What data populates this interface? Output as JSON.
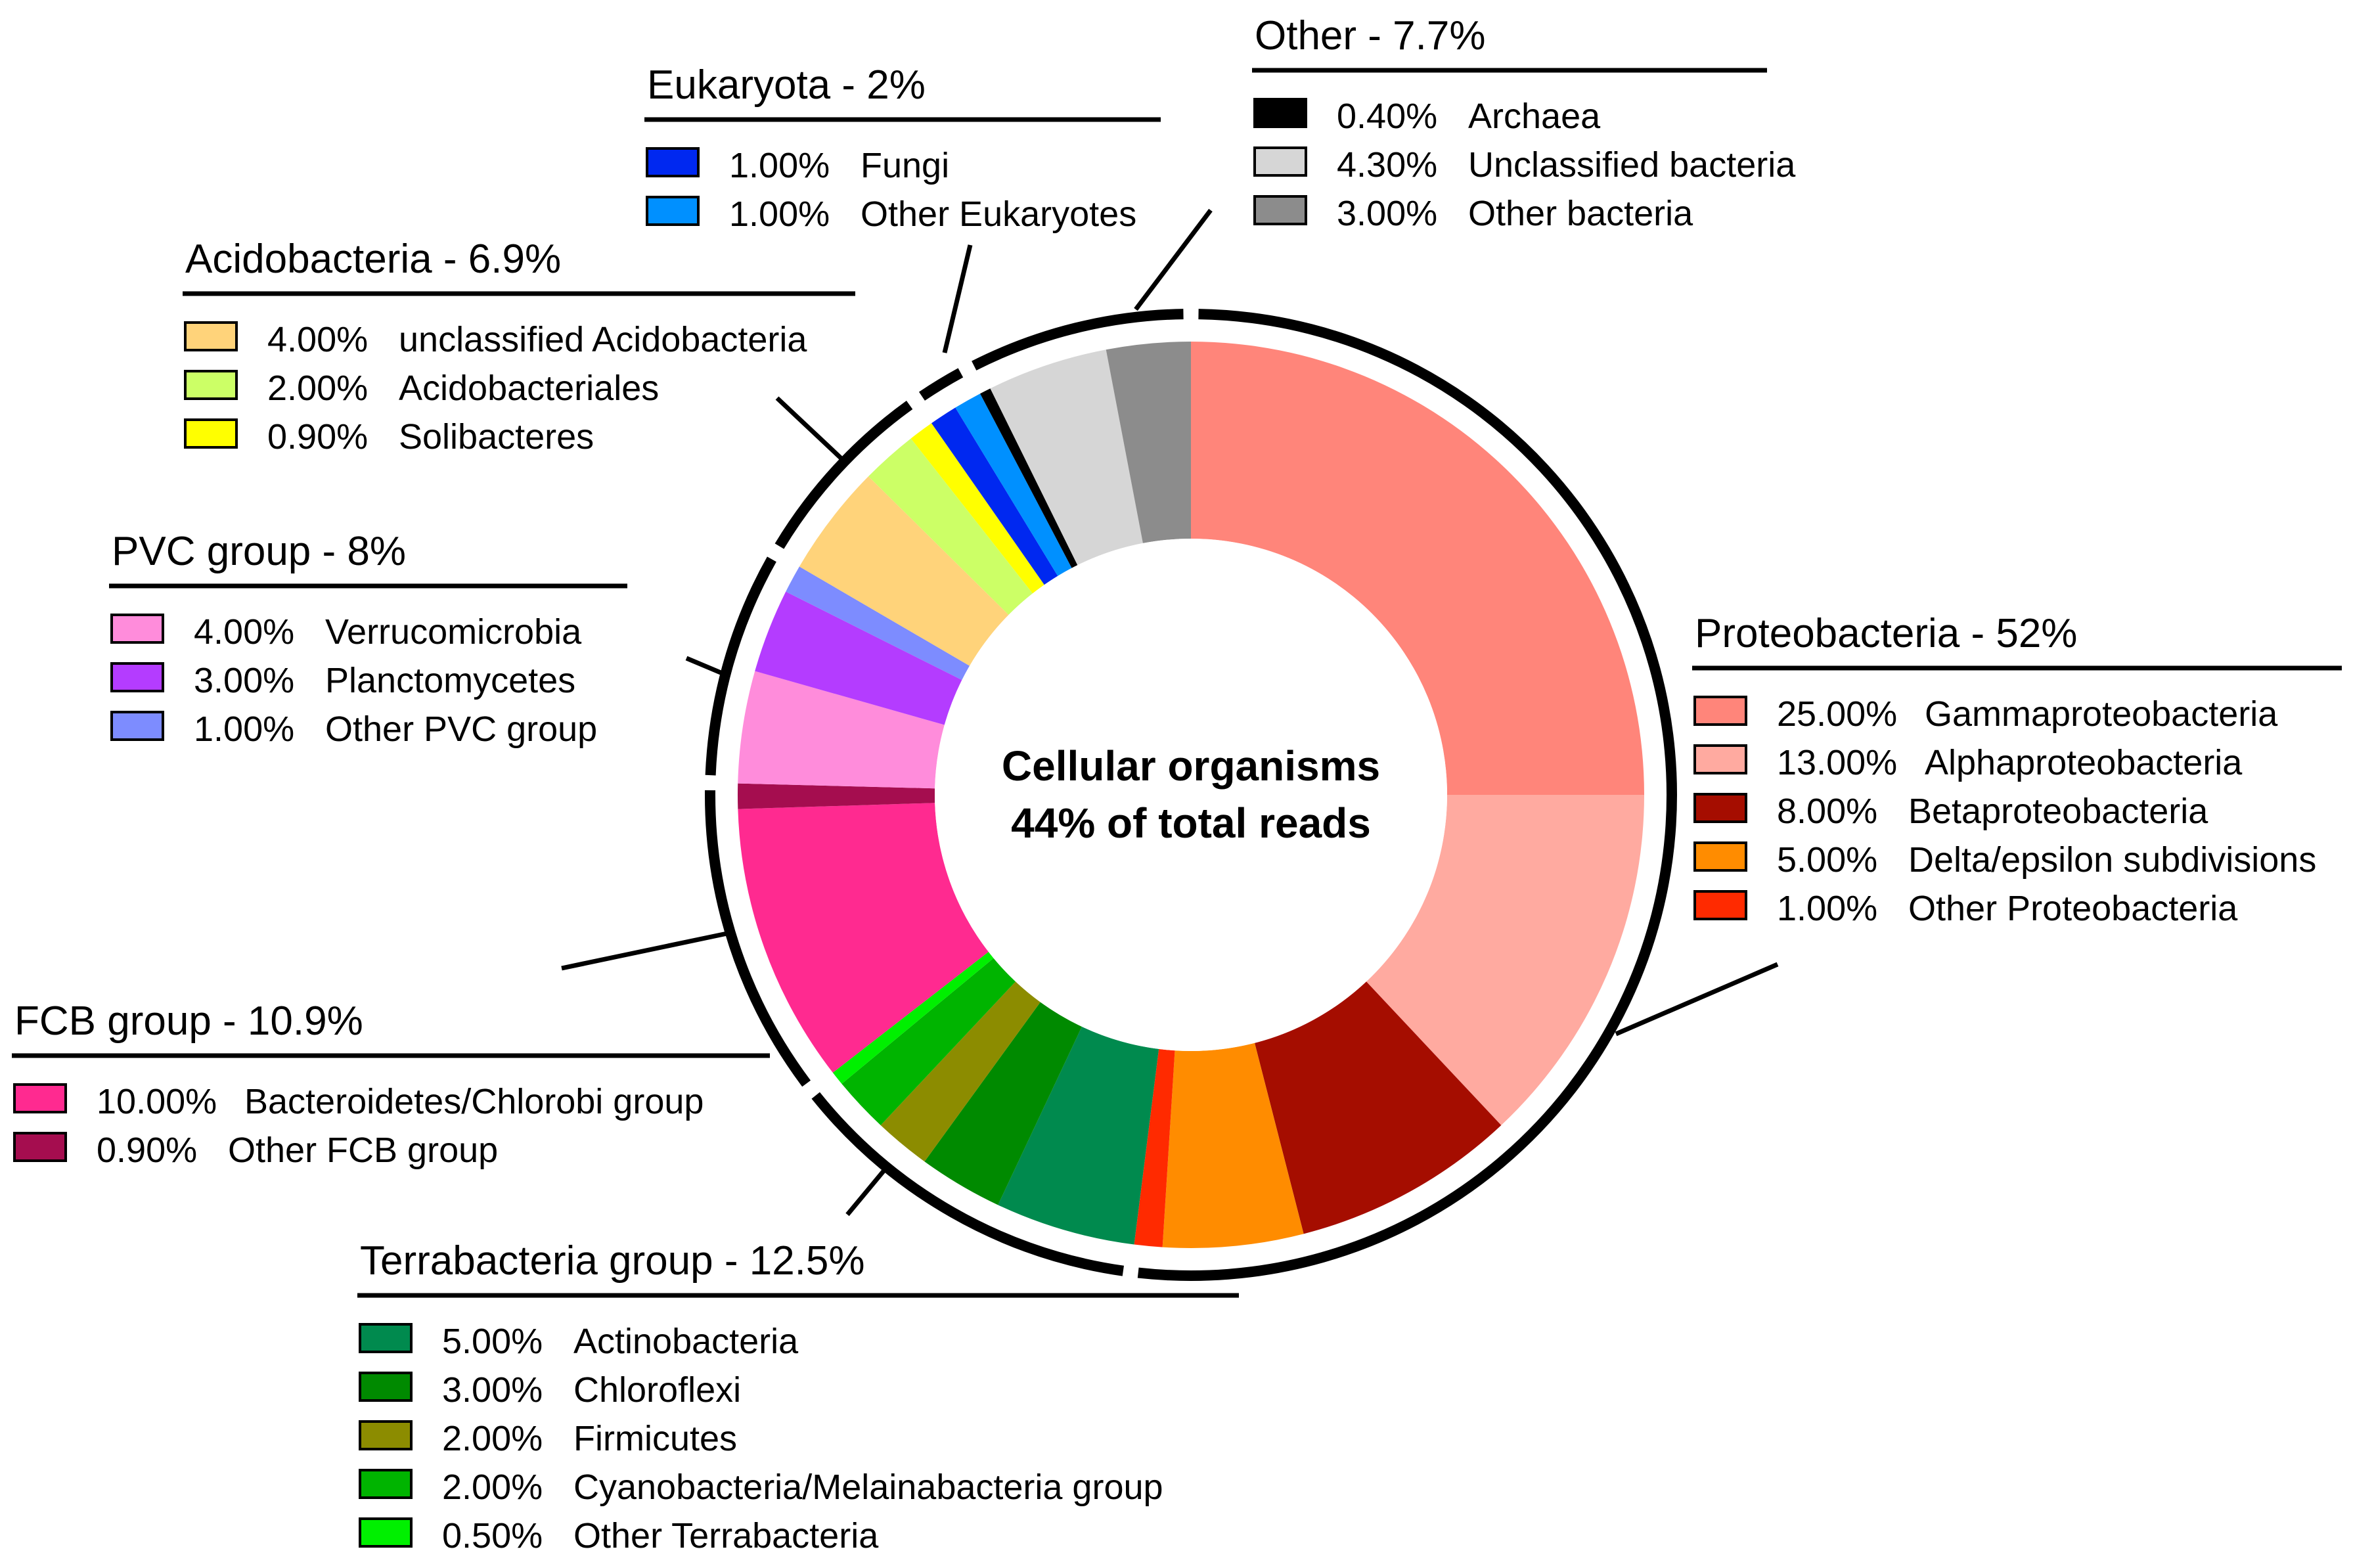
{
  "chart_data": {
    "type": "pie",
    "variant": "donut",
    "center_label": [
      "Cellular organisms",
      "44% of total reads"
    ],
    "groups": [
      {
        "name": "Proteobacteria - 52%",
        "items": [
          {
            "value_label": "25.00%",
            "name": "Gammaproteobacteria",
            "value": 25.0,
            "color": "#FF857A"
          },
          {
            "value_label": "13.00%",
            "name": "Alphaproteobacteria",
            "value": 13.0,
            "color": "#FFAAA0"
          },
          {
            "value_label": "8.00%",
            "name": "Betaproteobacteria",
            "value": 8.0,
            "color": "#A50D00"
          },
          {
            "value_label": "5.00%",
            "name": "Delta/epsilon subdivisions",
            "value": 5.0,
            "color": "#FF8C00"
          },
          {
            "value_label": "1.00%",
            "name": "Other Proteobacteria",
            "value": 1.0,
            "color": "#FF2A00"
          }
        ]
      },
      {
        "name": "Terrabacteria group - 12.5%",
        "items": [
          {
            "value_label": "5.00%",
            "name": "Actinobacteria",
            "value": 5.0,
            "color": "#008A4E"
          },
          {
            "value_label": "3.00%",
            "name": "Chloroflexi",
            "value": 3.0,
            "color": "#008A00"
          },
          {
            "value_label": "2.00%",
            "name": "Firmicutes",
            "value": 2.0,
            "color": "#8C8C00"
          },
          {
            "value_label": "2.00%",
            "name": "Cyanobacteria/Melainabacteria group",
            "value": 2.0,
            "color": "#00B400"
          },
          {
            "value_label": "0.50%",
            "name": "Other Terrabacteria",
            "value": 0.5,
            "color": "#00F000"
          }
        ]
      },
      {
        "name": "FCB group - 10.9%",
        "items": [
          {
            "value_label": "10.00%",
            "name": "Bacteroidetes/Chlorobi group",
            "value": 10.0,
            "color": "#FF2A90"
          },
          {
            "value_label": "0.90%",
            "name": "Other FCB group",
            "value": 0.9,
            "color": "#A50D4F"
          }
        ]
      },
      {
        "name": "PVC group - 8%",
        "items": [
          {
            "value_label": "4.00%",
            "name": "Verrucomicrobia",
            "value": 4.0,
            "color": "#FF8CDB"
          },
          {
            "value_label": "3.00%",
            "name": "Planctomycetes",
            "value": 3.0,
            "color": "#B43CFF"
          },
          {
            "value_label": "1.00%",
            "name": "Other PVC group",
            "value": 1.0,
            "color": "#7D8CFF"
          }
        ]
      },
      {
        "name": "Acidobacteria - 6.9%",
        "items": [
          {
            "value_label": "4.00%",
            "name": "unclassified Acidobacteria",
            "value": 4.0,
            "color": "#FFD37A"
          },
          {
            "value_label": "2.00%",
            "name": "Acidobacteriales",
            "value": 2.0,
            "color": "#CCFF66"
          },
          {
            "value_label": "0.90%",
            "name": "Solibacteres",
            "value": 0.9,
            "color": "#FFFF00"
          }
        ]
      },
      {
        "name": "Eukaryota - 2%",
        "items": [
          {
            "value_label": "1.00%",
            "name": "Fungi",
            "value": 1.0,
            "color": "#0028F0"
          },
          {
            "value_label": "1.00%",
            "name": "Other Eukaryotes",
            "value": 1.0,
            "color": "#0090FF"
          }
        ]
      },
      {
        "name": "Other - 7.7%",
        "items": [
          {
            "value_label": "0.40%",
            "name": "Archaea",
            "value": 0.4,
            "color": "#000000"
          },
          {
            "value_label": "4.30%",
            "name": "Unclassified bacteria",
            "value": 4.3,
            "color": "#D6D6D6"
          },
          {
            "value_label": "3.00%",
            "name": "Other bacteria",
            "value": 3.0,
            "color": "#8C8C8C"
          }
        ]
      }
    ]
  }
}
